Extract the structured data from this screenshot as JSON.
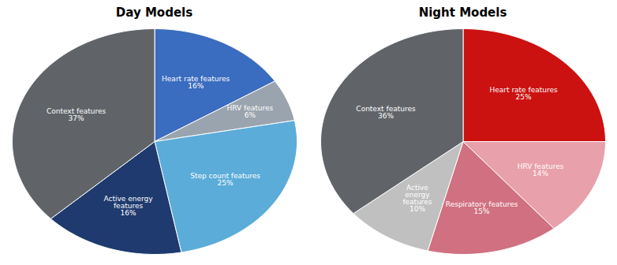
{
  "chart_data": [
    {
      "type": "pie",
      "title": "Day Models",
      "categories": [
        "Heart rate features",
        "HRV features",
        "Step count features",
        "Active energy\nfeatures",
        "Context features"
      ],
      "values": [
        16,
        6,
        25,
        16,
        37
      ],
      "value_labels": [
        "16%",
        "6%",
        "25%",
        "16%",
        "37%"
      ],
      "colors": [
        "#3a6cbf",
        "#9aa4ae",
        "#5bacd8",
        "#1e3a6e",
        "#606469"
      ],
      "data_labels": true
    },
    {
      "type": "pie",
      "title": "Night Models",
      "categories": [
        "Heart rate features",
        "HRV features",
        "Respiratory features",
        "Active\nenergy\nfeatures",
        "Context features"
      ],
      "values": [
        25,
        14,
        15,
        10,
        36
      ],
      "value_labels": [
        "25%",
        "14%",
        "15%",
        "10%",
        "36%"
      ],
      "colors": [
        "#cc1111",
        "#e8a0aa",
        "#d07080",
        "#c0c0c0",
        "#606469"
      ],
      "data_labels": true
    }
  ]
}
